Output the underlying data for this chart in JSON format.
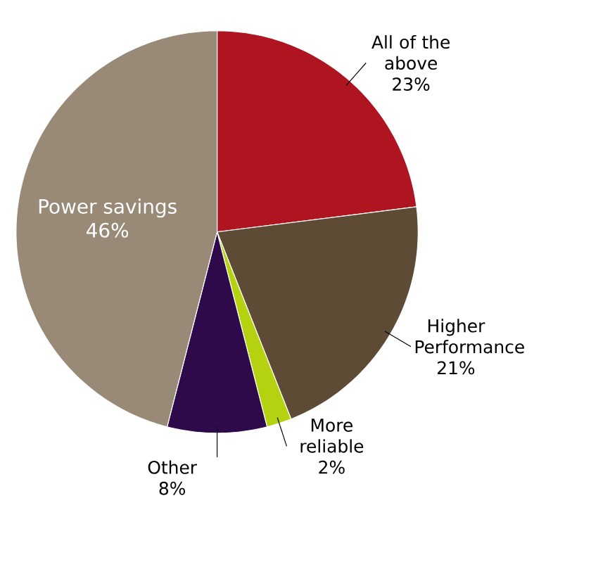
{
  "chart_data": {
    "type": "pie",
    "categories": [
      "All of the above",
      "Higher Performance",
      "More reliable",
      "Other",
      "Power savings"
    ],
    "values": [
      23,
      21,
      2,
      8,
      46
    ],
    "value_labels": [
      "23%",
      "21%",
      "2%",
      "8%",
      "46%"
    ],
    "colors": [
      "#ae1520",
      "#5d4b35",
      "#b4d20f",
      "#2f0a4b",
      "#998a78"
    ]
  }
}
